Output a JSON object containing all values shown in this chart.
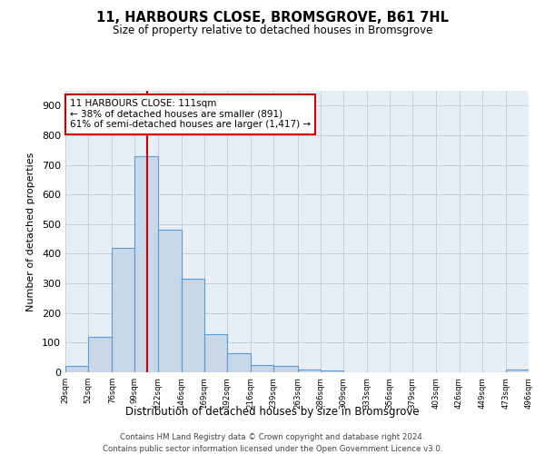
{
  "title": "11, HARBOURS CLOSE, BROMSGROVE, B61 7HL",
  "subtitle": "Size of property relative to detached houses in Bromsgrove",
  "xlabel": "Distribution of detached houses by size in Bromsgrove",
  "ylabel": "Number of detached properties",
  "bins": [
    29,
    52,
    76,
    99,
    122,
    146,
    169,
    192,
    216,
    239,
    263,
    286,
    309,
    333,
    356,
    379,
    403,
    426,
    449,
    473,
    496
  ],
  "heights": [
    20,
    120,
    420,
    730,
    480,
    315,
    130,
    65,
    25,
    20,
    10,
    5,
    0,
    0,
    0,
    0,
    0,
    0,
    0,
    8
  ],
  "bar_color": "#c8d8e8",
  "bar_edge_color": "#5b9bd5",
  "vline_x": 111,
  "vline_color": "#cc0000",
  "annotation_text": "11 HARBOURS CLOSE: 111sqm\n← 38% of detached houses are smaller (891)\n61% of semi-detached houses are larger (1,417) →",
  "annotation_box_color": "#cc0000",
  "ylim": [
    0,
    950
  ],
  "yticks": [
    0,
    100,
    200,
    300,
    400,
    500,
    600,
    700,
    800,
    900
  ],
  "footer1": "Contains HM Land Registry data © Crown copyright and database right 2024.",
  "footer2": "Contains public sector information licensed under the Open Government Licence v3.0.",
  "bg_color": "#ffffff",
  "plot_bg_color": "#e8eef5",
  "grid_color": "#c0c8d8"
}
